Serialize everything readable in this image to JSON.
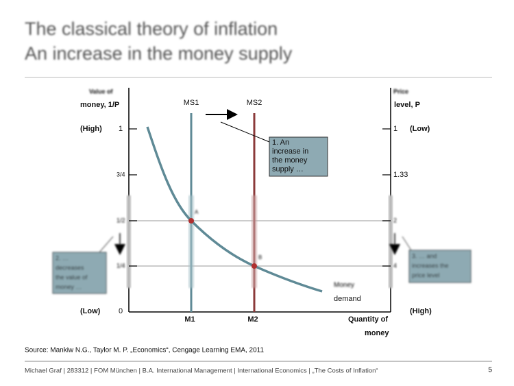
{
  "header": {
    "title": [
      "The classical theory of inflation",
      "An increase in the money supply"
    ]
  },
  "diagram": {
    "left_axis": {
      "title": [
        "Value of",
        "money, 1/P"
      ],
      "high": "(High)",
      "low": "(Low)",
      "ticks": [
        "1",
        "3/4",
        "1/2",
        "1/4",
        "0"
      ]
    },
    "right_axis": {
      "title": [
        "Price",
        "level, P"
      ],
      "low": "(Low)",
      "high": "(High)",
      "ticks": [
        "1",
        "1.33",
        "2",
        "4"
      ]
    },
    "supply_lines": [
      "MS1",
      "MS2"
    ],
    "x_labels": [
      "M1",
      "M2"
    ],
    "x_axis_title": [
      "Quantity of",
      "money"
    ],
    "points": [
      "A",
      "B"
    ],
    "demand_label": [
      "Money",
      "demand"
    ],
    "callouts": [
      [
        "1. An",
        "increase in",
        "the money",
        "supply …"
      ],
      [
        "2. …",
        "decreases",
        "the value of",
        "money …"
      ],
      [
        "3. … and",
        "increases the",
        "price level"
      ]
    ]
  },
  "source": "Source: Mankiw N.G., Taylor M. P. „Economics“, Cengage Learning EMA, 2011",
  "footer": {
    "text": "Michael Graf | 283312 | FOM München | B.A. International Management | International Economics | „The Costs of Inflation“",
    "page": "5"
  }
}
